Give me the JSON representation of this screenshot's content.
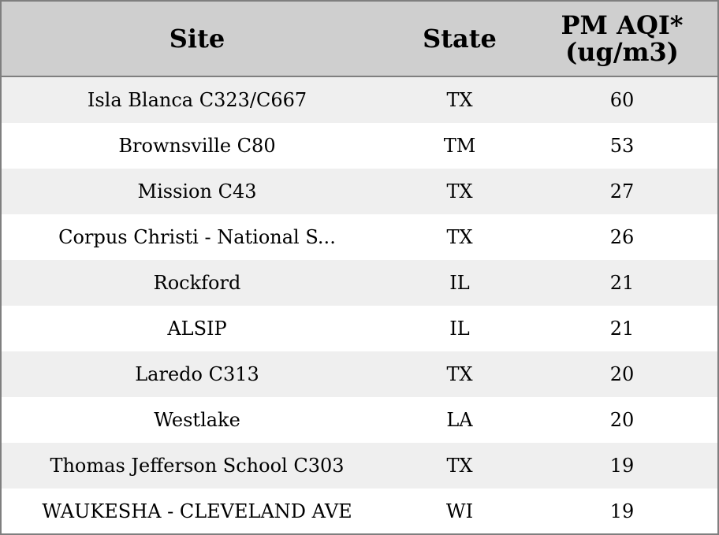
{
  "chart_data": {
    "type": "table",
    "columns": [
      "Site",
      "State",
      "PM AQI*"
    ],
    "column_subtitle": "(ug/m3)",
    "rows": [
      {
        "site": "Isla Blanca C323/C667",
        "state": "TX",
        "pm_aqi": 60
      },
      {
        "site": "Brownsville C80",
        "state": "TM",
        "pm_aqi": 53
      },
      {
        "site": "Mission C43",
        "state": "TX",
        "pm_aqi": 27
      },
      {
        "site": "Corpus Christi - National S...",
        "state": "TX",
        "pm_aqi": 26
      },
      {
        "site": "Rockford",
        "state": "IL",
        "pm_aqi": 21
      },
      {
        "site": "ALSIP",
        "state": "IL",
        "pm_aqi": 21
      },
      {
        "site": "Laredo C313",
        "state": "TX",
        "pm_aqi": 20
      },
      {
        "site": "Westlake",
        "state": "LA",
        "pm_aqi": 20
      },
      {
        "site": "Thomas Jefferson School C303",
        "state": "TX",
        "pm_aqi": 19
      },
      {
        "site": "WAUKESHA - CLEVELAND AVE",
        "state": "WI",
        "pm_aqi": 19
      }
    ],
    "colors": {
      "header_bg": "#cfcfcf",
      "row_shaded": "#efefef",
      "row_plain": "#ffffff",
      "border": "#7f7f7f"
    }
  }
}
